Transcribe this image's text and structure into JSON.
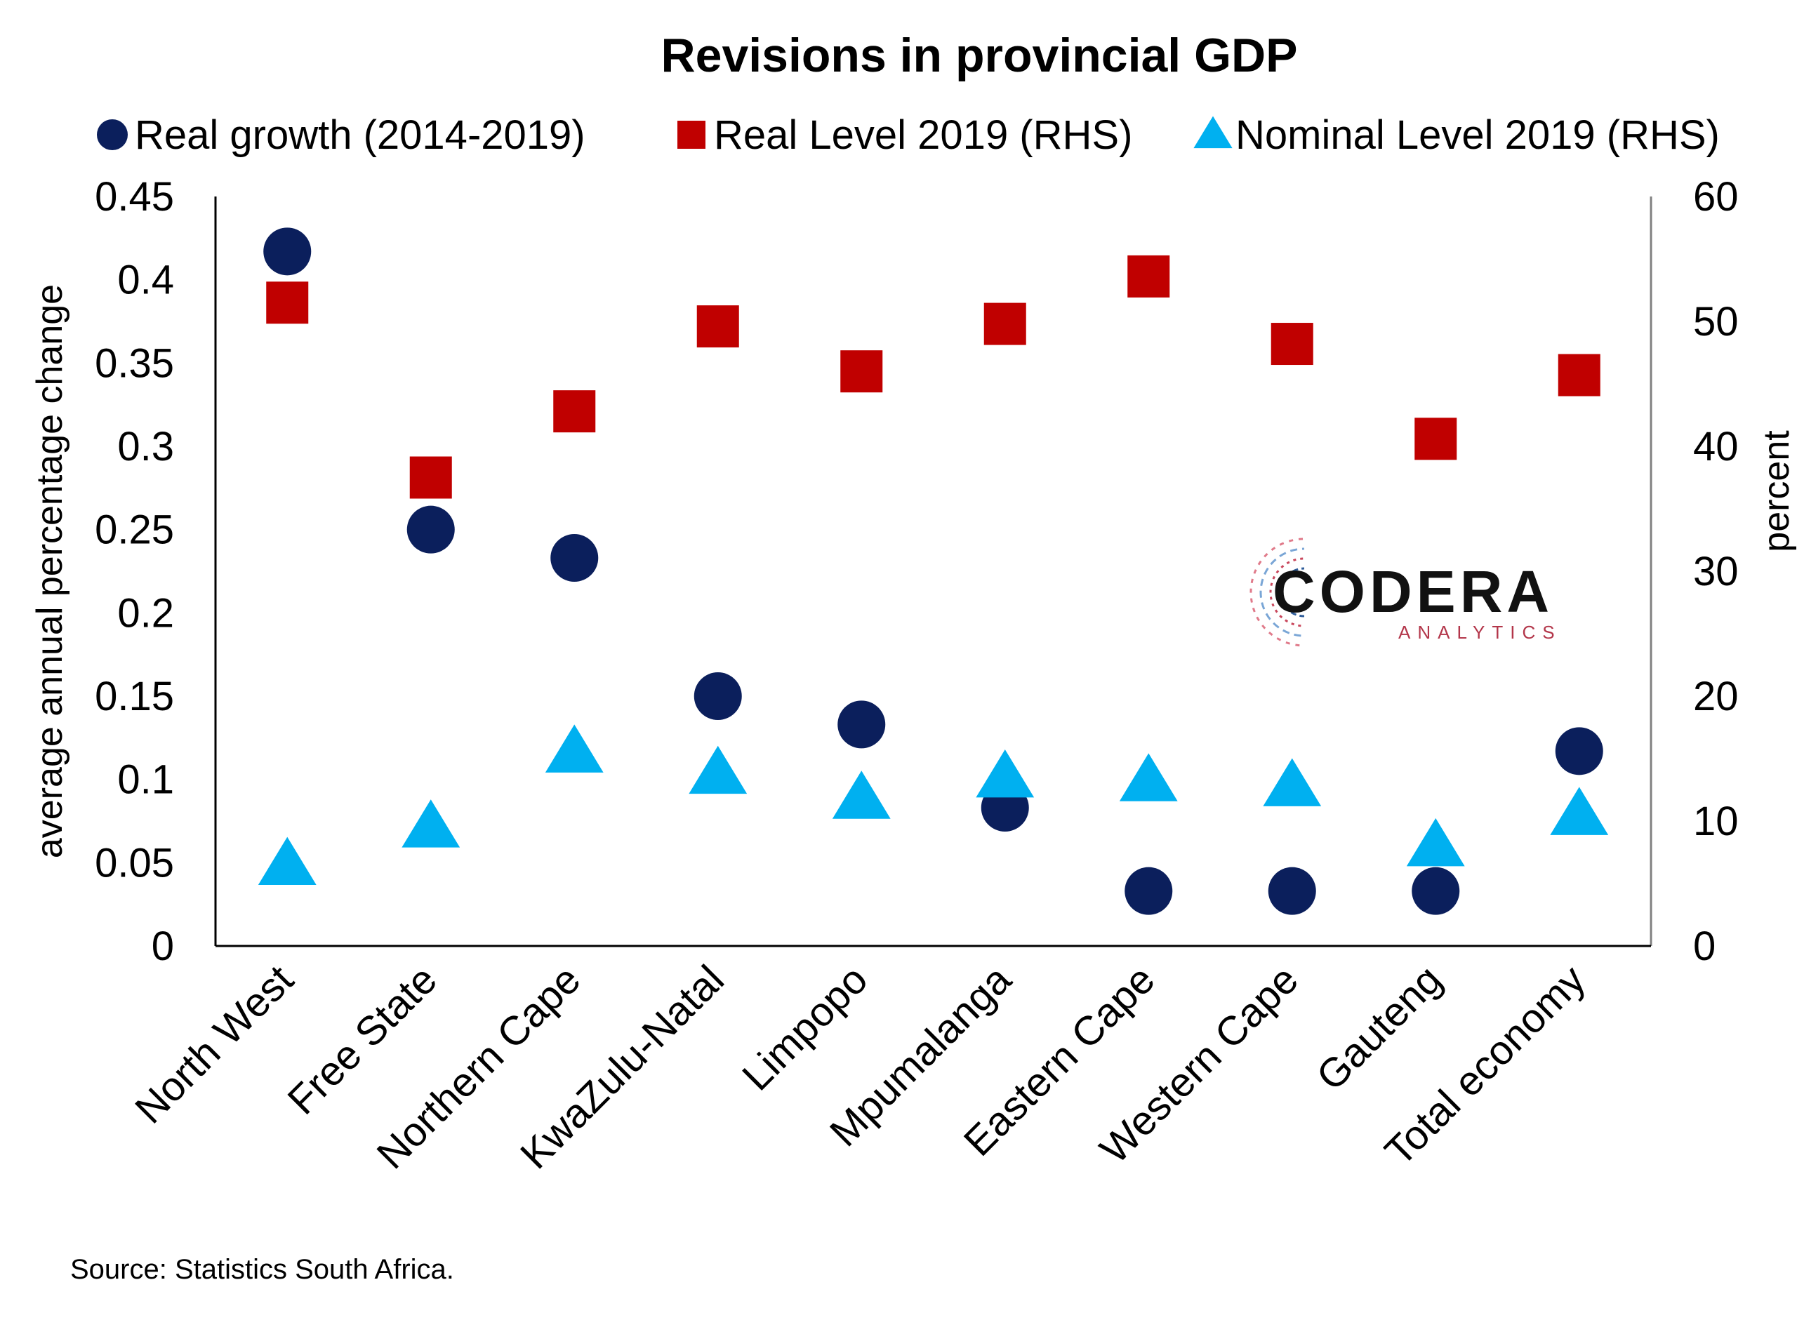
{
  "chart_data": {
    "type": "scatter",
    "title": "Revisions in provincial GDP",
    "categories": [
      "North West",
      "Free State",
      "Northern Cape",
      "KwaZulu-Natal",
      "Limpopo",
      "Mpumalanga",
      "Eastern Cape",
      "Western Cape",
      "Gauteng",
      "Total economy"
    ],
    "series": [
      {
        "name": "Real growth (2014-2019)",
        "axis": "left",
        "marker": "circle",
        "color": "#0b1f5c",
        "values": [
          0.417,
          0.25,
          0.233,
          0.15,
          0.133,
          0.083,
          0.033,
          0.033,
          0.033,
          0.117
        ]
      },
      {
        "name": "Real Level 2019 (RHS)",
        "axis": "right",
        "marker": "square",
        "color": "#c00000",
        "values": [
          51.5,
          37.5,
          42.8,
          49.6,
          46.0,
          49.8,
          53.6,
          48.2,
          40.6,
          45.7
        ]
      },
      {
        "name": "Nominal Level 2019 (RHS)",
        "axis": "right",
        "marker": "triangle",
        "color": "#00b0f0",
        "values": [
          6.5,
          9.5,
          15.5,
          13.8,
          11.8,
          13.5,
          13.2,
          12.8,
          8.0,
          10.5
        ]
      }
    ],
    "ylabel": "average annual percentage change",
    "y2label": "percent",
    "ylim": [
      0,
      0.45
    ],
    "y2lim": [
      0,
      60
    ],
    "yticks": [
      "0",
      "0.05",
      "0.1",
      "0.15",
      "0.2",
      "0.25",
      "0.3",
      "0.35",
      "0.4",
      "0.45"
    ],
    "y2ticks": [
      "0",
      "10",
      "20",
      "30",
      "40",
      "50",
      "60"
    ],
    "grid": false,
    "legend_position": "top"
  },
  "source_note": "Source: Statistics South Africa.",
  "logo": {
    "name": "CODERA",
    "subtitle": "ANALYTICS"
  }
}
